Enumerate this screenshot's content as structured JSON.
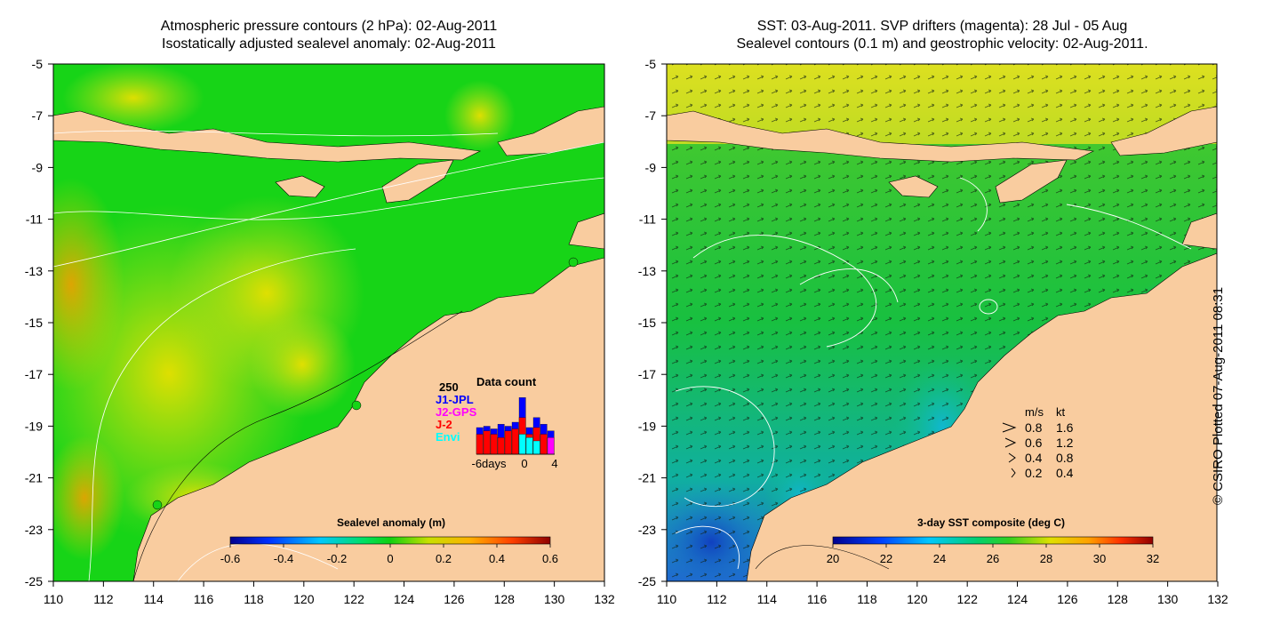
{
  "left_panel": {
    "title_line1": "Atmospheric pressure contours (2 hPa): 02-Aug-2011",
    "title_line2": "Isostatically adjusted sealevel anomaly: 02-Aug-2011",
    "x_ticks": [
      "110",
      "112",
      "114",
      "116",
      "118",
      "120",
      "122",
      "124",
      "126",
      "128",
      "130",
      "132"
    ],
    "y_ticks": [
      "-5",
      "-7",
      "-9",
      "-11",
      "-13",
      "-15",
      "-17",
      "-19",
      "-21",
      "-23",
      "-25"
    ],
    "colorbar": {
      "title": "Sealevel anomaly (m)",
      "ticks": [
        "-0.6",
        "-0.4",
        "-0.2",
        "0",
        "0.2",
        "0.4",
        "0.6"
      ]
    },
    "data_count": {
      "title": "Data count",
      "y_label": "250",
      "x_ticks": [
        "-6days",
        "0",
        "4"
      ],
      "legend": [
        {
          "label": "J1-JPL",
          "color": "#0000ff"
        },
        {
          "label": "J2-GPS",
          "color": "#ff00ff"
        },
        {
          "label": "J-2",
          "color": "#ff0000"
        },
        {
          "label": "Envi",
          "color": "#00ffff"
        }
      ],
      "bars": [
        {
          "day": -6,
          "J1-JPL": 0.4,
          "J-2": 0.3,
          "Envi": 0
        },
        {
          "day": -5,
          "J1-JPL": 0.42,
          "J-2": 0.35,
          "Envi": 0
        },
        {
          "day": -4,
          "J1-JPL": 0.38,
          "J-2": 0.3,
          "Envi": 0
        },
        {
          "day": -3,
          "J1-JPL": 0.45,
          "J-2": 0.25,
          "Envi": 0
        },
        {
          "day": -2,
          "J1-JPL": 0.42,
          "J-2": 0.35,
          "Envi": 0
        },
        {
          "day": -1,
          "J1-JPL": 0.48,
          "J-2": 0.38,
          "Envi": 0
        },
        {
          "day": 0,
          "J1-JPL": 0.85,
          "J-2": 0.55,
          "Envi": 0.3
        },
        {
          "day": 1,
          "J1-JPL": 0.4,
          "J-2": 0.3,
          "Envi": 0.25
        },
        {
          "day": 2,
          "J1-JPL": 0.55,
          "J-2": 0.4,
          "Envi": 0.2
        },
        {
          "day": 3,
          "J1-JPL": 0.45,
          "J-2": 0.3,
          "Envi": 0
        },
        {
          "day": 4,
          "J1-JPL": 0.35,
          "J2-GPS": 0.25,
          "Envi": 0
        }
      ]
    }
  },
  "right_panel": {
    "title_line1": "SST: 03-Aug-2011. SVP drifters (magenta): 28 Jul - 05 Aug",
    "title_line2": "Sealevel contours (0.1 m) and geostrophic velocity: 02-Aug-2011.",
    "x_ticks": [
      "110",
      "112",
      "114",
      "116",
      "118",
      "120",
      "122",
      "124",
      "126",
      "128",
      "130",
      "132"
    ],
    "y_ticks": [
      "-5",
      "-7",
      "-9",
      "-11",
      "-13",
      "-15",
      "-17",
      "-19",
      "-21",
      "-23",
      "-25"
    ],
    "colorbar": {
      "title": "3-day SST composite (deg C)",
      "ticks": [
        "20",
        "22",
        "24",
        "26",
        "28",
        "30",
        "32"
      ]
    },
    "velocity_legend": {
      "header_ms": "m/s",
      "header_kt": "kt",
      "rows": [
        {
          "ms": "0.8",
          "kt": "1.6"
        },
        {
          "ms": "0.6",
          "kt": "1.2"
        },
        {
          "ms": "0.4",
          "kt": "0.8"
        },
        {
          "ms": "0.2",
          "kt": "0.4"
        }
      ]
    }
  },
  "credit": "© CSIRO Plotted 07-Aug-2011 08:31",
  "colors": {
    "land": "#f9cc9f",
    "sea_green": "#17d417",
    "sea_yellow": "#d4e040",
    "sst_green": "#18c83a",
    "sst_cyan": "#18b4c8",
    "sst_yellow": "#e0e020"
  }
}
